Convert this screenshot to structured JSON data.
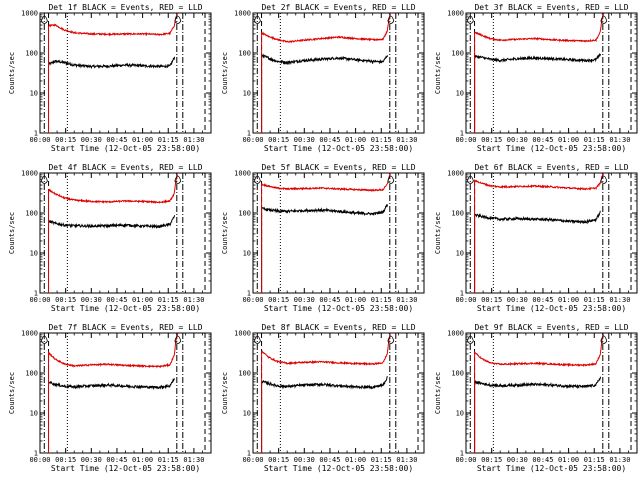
{
  "chart_data": {
    "type": "line",
    "grid": false,
    "yscale": "log",
    "ylim": [
      1,
      1000
    ],
    "yticks": [
      1,
      10,
      100,
      1000
    ],
    "ytick_labels": [
      "1",
      "10",
      "100",
      "1000"
    ],
    "xlim": [
      0,
      100
    ],
    "xticks": [
      0,
      15,
      30,
      45,
      60,
      75,
      90
    ],
    "xtick_labels": [
      "00:00",
      "00:15",
      "00:30",
      "00:45",
      "01:00",
      "01:15",
      "01:30"
    ],
    "xlabel": "Start Time (12-Oct-05 23:58:00)",
    "ylabel": "Counts/sec",
    "series_colors": {
      "events": "#000000",
      "lld": "#dd0000"
    },
    "panels": [
      {
        "title": "Det 1f BLACK = Events, RED = LLD",
        "markers": [
          {
            "t": 2.5,
            "style": "dashdot"
          },
          {
            "t": 5.0,
            "style": "dash"
          },
          {
            "t": 16.0,
            "style": "dot"
          },
          {
            "t": 80.0,
            "style": "dashdot"
          },
          {
            "t": 83.5,
            "style": "dashdot"
          },
          {
            "t": 96.5,
            "style": "dash"
          }
        ],
        "series": [
          {
            "name": "Events",
            "x": [
              5,
              9,
              14,
              20,
              30,
              40,
              50,
              60,
              70,
              76,
              78.8
            ],
            "values": [
              52,
              62,
              58,
              50,
              46,
              47,
              50,
              48,
              46,
              47,
              80
            ]
          },
          {
            "name": "LLD",
            "x": [
              5,
              9,
              14,
              20,
              30,
              40,
              50,
              60,
              70,
              76,
              78.5,
              79.5,
              80.5
            ],
            "values": [
              480,
              500,
              380,
              320,
              300,
              295,
              300,
              300,
              290,
              310,
              480,
              800,
              950
            ]
          }
        ]
      },
      {
        "title": "Det 2f BLACK = Events, RED = LLD",
        "markers": [
          {
            "t": 2.5,
            "style": "dashdot"
          },
          {
            "t": 5.0,
            "style": "dash"
          },
          {
            "t": 16.0,
            "style": "dot"
          },
          {
            "t": 80.0,
            "style": "dashdot"
          },
          {
            "t": 83.5,
            "style": "dashdot"
          },
          {
            "t": 96.5,
            "style": "dash"
          }
        ],
        "series": [
          {
            "name": "Events",
            "x": [
              5,
              9,
              14,
              20,
              30,
              40,
              50,
              60,
              70,
              76,
              78.8
            ],
            "values": [
              88,
              75,
              62,
              58,
              65,
              70,
              75,
              68,
              62,
              60,
              90
            ]
          },
          {
            "name": "LLD",
            "x": [
              5,
              9,
              14,
              20,
              30,
              40,
              50,
              60,
              70,
              76,
              78.5,
              79.5,
              80.5
            ],
            "values": [
              320,
              260,
              220,
              190,
              210,
              230,
              250,
              230,
              215,
              220,
              350,
              700,
              950
            ]
          }
        ]
      },
      {
        "title": "Det 3f BLACK = Events, RED = LLD",
        "markers": [
          {
            "t": 2.5,
            "style": "dashdot"
          },
          {
            "t": 5.0,
            "style": "dash"
          },
          {
            "t": 16.0,
            "style": "dot"
          },
          {
            "t": 80.0,
            "style": "dashdot"
          },
          {
            "t": 83.5,
            "style": "dashdot"
          },
          {
            "t": 96.5,
            "style": "dash"
          }
        ],
        "series": [
          {
            "name": "Events",
            "x": [
              5,
              9,
              14,
              20,
              30,
              40,
              50,
              60,
              70,
              76,
              78.8
            ],
            "values": [
              82,
              78,
              70,
              65,
              72,
              75,
              72,
              68,
              65,
              68,
              95
            ]
          },
          {
            "name": "LLD",
            "x": [
              5,
              9,
              14,
              20,
              30,
              40,
              50,
              60,
              70,
              76,
              78.5,
              79.5,
              80.5
            ],
            "values": [
              330,
              280,
              230,
              210,
              220,
              230,
              215,
              205,
              200,
              210,
              330,
              700,
              950
            ]
          }
        ]
      },
      {
        "title": "Det 4f BLACK = Events, RED = LLD",
        "markers": [
          {
            "t": 2.5,
            "style": "dashdot"
          },
          {
            "t": 5.0,
            "style": "dash"
          },
          {
            "t": 16.0,
            "style": "dot"
          },
          {
            "t": 80.0,
            "style": "dashdot"
          },
          {
            "t": 83.5,
            "style": "dashdot"
          },
          {
            "t": 96.5,
            "style": "dash"
          }
        ],
        "series": [
          {
            "name": "Events",
            "x": [
              5,
              9,
              14,
              20,
              30,
              40,
              50,
              60,
              70,
              76,
              78.8
            ],
            "values": [
              62,
              55,
              50,
              48,
              47,
              48,
              50,
              47,
              46,
              52,
              85
            ]
          },
          {
            "name": "LLD",
            "x": [
              5,
              9,
              14,
              20,
              30,
              40,
              50,
              60,
              70,
              76,
              78.5,
              79.5,
              80.5
            ],
            "values": [
              380,
              300,
              240,
              210,
              195,
              190,
              200,
              195,
              185,
              200,
              300,
              650,
              950
            ]
          }
        ]
      },
      {
        "title": "Det 5f BLACK = Events, RED = LLD",
        "markers": [
          {
            "t": 2.5,
            "style": "dashdot"
          },
          {
            "t": 5.0,
            "style": "dash"
          },
          {
            "t": 16.0,
            "style": "dot"
          },
          {
            "t": 80.0,
            "style": "dashdot"
          },
          {
            "t": 83.5,
            "style": "dashdot"
          },
          {
            "t": 96.5,
            "style": "dash"
          }
        ],
        "series": [
          {
            "name": "Events",
            "x": [
              5,
              9,
              14,
              20,
              30,
              40,
              50,
              60,
              70,
              76,
              78.8
            ],
            "values": [
              130,
              120,
              112,
              110,
              115,
              118,
              110,
              100,
              95,
              105,
              170
            ]
          },
          {
            "name": "LLD",
            "x": [
              5,
              9,
              14,
              20,
              30,
              40,
              50,
              60,
              70,
              76,
              78.5,
              79.5,
              80.5
            ],
            "values": [
              520,
              470,
              420,
              400,
              410,
              420,
              400,
              385,
              370,
              380,
              520,
              800,
              950
            ]
          }
        ]
      },
      {
        "title": "Det 6f BLACK = Events, RED = LLD",
        "markers": [
          {
            "t": 2.5,
            "style": "dashdot"
          },
          {
            "t": 5.0,
            "style": "dash"
          },
          {
            "t": 16.0,
            "style": "dot"
          },
          {
            "t": 80.0,
            "style": "dashdot"
          },
          {
            "t": 83.5,
            "style": "dashdot"
          },
          {
            "t": 96.5,
            "style": "dash"
          }
        ],
        "series": [
          {
            "name": "Events",
            "x": [
              5,
              9,
              14,
              20,
              30,
              40,
              50,
              60,
              70,
              76,
              78.8
            ],
            "values": [
              90,
              82,
              75,
              70,
              72,
              70,
              68,
              62,
              60,
              68,
              110
            ]
          },
          {
            "name": "LLD",
            "x": [
              5,
              9,
              14,
              20,
              30,
              40,
              50,
              60,
              70,
              76,
              78.5,
              79.5,
              80.5
            ],
            "values": [
              650,
              560,
              480,
              450,
              460,
              470,
              450,
              420,
              400,
              420,
              560,
              820,
              950
            ]
          }
        ]
      },
      {
        "title": "Det 7f BLACK = Events, RED = LLD",
        "markers": [
          {
            "t": 2.5,
            "style": "dashdot"
          },
          {
            "t": 5.0,
            "style": "dash"
          },
          {
            "t": 16.0,
            "style": "dot"
          },
          {
            "t": 80.0,
            "style": "dashdot"
          },
          {
            "t": 83.5,
            "style": "dashdot"
          },
          {
            "t": 96.5,
            "style": "dash"
          }
        ],
        "series": [
          {
            "name": "Events",
            "x": [
              5,
              9,
              14,
              20,
              30,
              40,
              50,
              60,
              70,
              76,
              78.8
            ],
            "values": [
              60,
              52,
              47,
              45,
              48,
              50,
              47,
              45,
              44,
              48,
              75
            ]
          },
          {
            "name": "LLD",
            "x": [
              5,
              9,
              14,
              20,
              30,
              40,
              50,
              60,
              70,
              76,
              78.5,
              79.5,
              80.5
            ],
            "values": [
              320,
              220,
              170,
              150,
              160,
              165,
              155,
              150,
              145,
              160,
              280,
              650,
              950
            ]
          }
        ]
      },
      {
        "title": "Det 8f BLACK = Events, RED = LLD",
        "markers": [
          {
            "t": 2.5,
            "style": "dashdot"
          },
          {
            "t": 5.0,
            "style": "dash"
          },
          {
            "t": 16.0,
            "style": "dot"
          },
          {
            "t": 80.0,
            "style": "dashdot"
          },
          {
            "t": 83.5,
            "style": "dashdot"
          },
          {
            "t": 96.5,
            "style": "dash"
          }
        ],
        "series": [
          {
            "name": "Events",
            "x": [
              5,
              9,
              14,
              20,
              30,
              40,
              50,
              60,
              70,
              76,
              78.8
            ],
            "values": [
              62,
              55,
              48,
              46,
              50,
              52,
              48,
              45,
              44,
              50,
              80
            ]
          },
          {
            "name": "LLD",
            "x": [
              5,
              9,
              14,
              20,
              30,
              40,
              50,
              60,
              70,
              76,
              78.5,
              79.5,
              80.5
            ],
            "values": [
              360,
              250,
              195,
              175,
              185,
              190,
              180,
              172,
              168,
              180,
              300,
              680,
              950
            ]
          }
        ]
      },
      {
        "title": "Det 9f BLACK = Events, RED = LLD",
        "markers": [
          {
            "t": 2.5,
            "style": "dashdot"
          },
          {
            "t": 5.0,
            "style": "dash"
          },
          {
            "t": 16.0,
            "style": "dot"
          },
          {
            "t": 80.0,
            "style": "dashdot"
          },
          {
            "t": 83.5,
            "style": "dashdot"
          },
          {
            "t": 96.5,
            "style": "dash"
          }
        ],
        "series": [
          {
            "name": "Events",
            "x": [
              5,
              9,
              14,
              20,
              30,
              40,
              50,
              60,
              70,
              76,
              78.8
            ],
            "values": [
              60,
              55,
              50,
              48,
              50,
              52,
              50,
              47,
              46,
              50,
              80
            ]
          },
          {
            "name": "LLD",
            "x": [
              5,
              9,
              14,
              20,
              30,
              40,
              50,
              60,
              70,
              76,
              78.5,
              79.5,
              80.5
            ],
            "values": [
              330,
              230,
              180,
              165,
              170,
              175,
              168,
              160,
              158,
              170,
              290,
              660,
              950
            ]
          }
        ]
      }
    ]
  }
}
